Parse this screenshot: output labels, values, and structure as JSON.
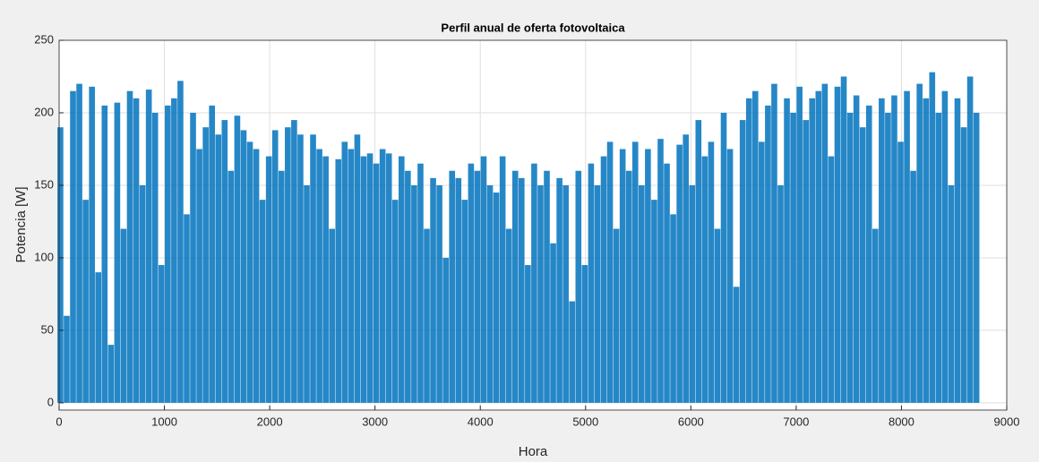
{
  "chart_data": {
    "type": "stem",
    "title": "Perfil anual de oferta fotovoltaica",
    "xlabel": "Hora",
    "ylabel": "Potencia [W]",
    "color": "#0072bd",
    "grid": true,
    "xlim": [
      0,
      9000
    ],
    "xticks": [
      0,
      1000,
      2000,
      3000,
      4000,
      5000,
      6000,
      7000,
      8000,
      9000
    ],
    "ylim": [
      -5,
      250
    ],
    "yticks": [
      0,
      50,
      100,
      150,
      200,
      250
    ],
    "x": [
      12,
      72,
      132,
      192,
      252,
      312,
      372,
      432,
      492,
      552,
      612,
      672,
      732,
      792,
      852,
      912,
      972,
      1032,
      1092,
      1152,
      1212,
      1272,
      1332,
      1392,
      1452,
      1512,
      1572,
      1632,
      1692,
      1752,
      1812,
      1872,
      1932,
      1992,
      2052,
      2112,
      2172,
      2232,
      2292,
      2352,
      2412,
      2472,
      2532,
      2592,
      2652,
      2712,
      2772,
      2832,
      2892,
      2952,
      3012,
      3072,
      3132,
      3192,
      3252,
      3312,
      3372,
      3432,
      3492,
      3552,
      3612,
      3672,
      3732,
      3792,
      3852,
      3912,
      3972,
      4032,
      4092,
      4152,
      4212,
      4272,
      4332,
      4392,
      4452,
      4512,
      4572,
      4632,
      4692,
      4752,
      4812,
      4872,
      4932,
      4992,
      5052,
      5112,
      5172,
      5232,
      5292,
      5352,
      5412,
      5472,
      5532,
      5592,
      5652,
      5712,
      5772,
      5832,
      5892,
      5952,
      6012,
      6072,
      6132,
      6192,
      6252,
      6312,
      6372,
      6432,
      6492,
      6552,
      6612,
      6672,
      6732,
      6792,
      6852,
      6912,
      6972,
      7032,
      7092,
      7152,
      7212,
      7272,
      7332,
      7392,
      7452,
      7512,
      7572,
      7632,
      7692,
      7752,
      7812,
      7872,
      7932,
      7992,
      8052,
      8112,
      8172,
      8232,
      8292,
      8352,
      8412,
      8472,
      8532,
      8592,
      8652,
      8712
    ],
    "values": [
      190,
      60,
      215,
      220,
      140,
      218,
      90,
      205,
      40,
      207,
      120,
      215,
      210,
      150,
      216,
      200,
      95,
      205,
      210,
      222,
      130,
      200,
      175,
      190,
      205,
      185,
      195,
      160,
      198,
      188,
      180,
      175,
      140,
      170,
      188,
      160,
      190,
      195,
      185,
      150,
      185,
      175,
      170,
      120,
      168,
      180,
      175,
      185,
      170,
      172,
      165,
      175,
      172,
      140,
      170,
      160,
      150,
      165,
      120,
      155,
      150,
      100,
      160,
      155,
      140,
      165,
      160,
      170,
      150,
      145,
      170,
      120,
      160,
      155,
      95,
      165,
      150,
      160,
      110,
      155,
      150,
      70,
      160,
      95,
      165,
      150,
      170,
      180,
      120,
      175,
      160,
      180,
      150,
      175,
      140,
      182,
      165,
      130,
      178,
      185,
      150,
      195,
      170,
      180,
      120,
      200,
      175,
      80,
      195,
      210,
      215,
      180,
      205,
      220,
      150,
      210,
      200,
      218,
      195,
      210,
      215,
      220,
      170,
      218,
      225,
      200,
      212,
      190,
      205,
      120,
      210,
      200,
      212,
      180,
      215,
      160,
      220,
      210,
      228,
      200,
      215,
      150,
      210,
      190,
      225,
      200
    ]
  }
}
